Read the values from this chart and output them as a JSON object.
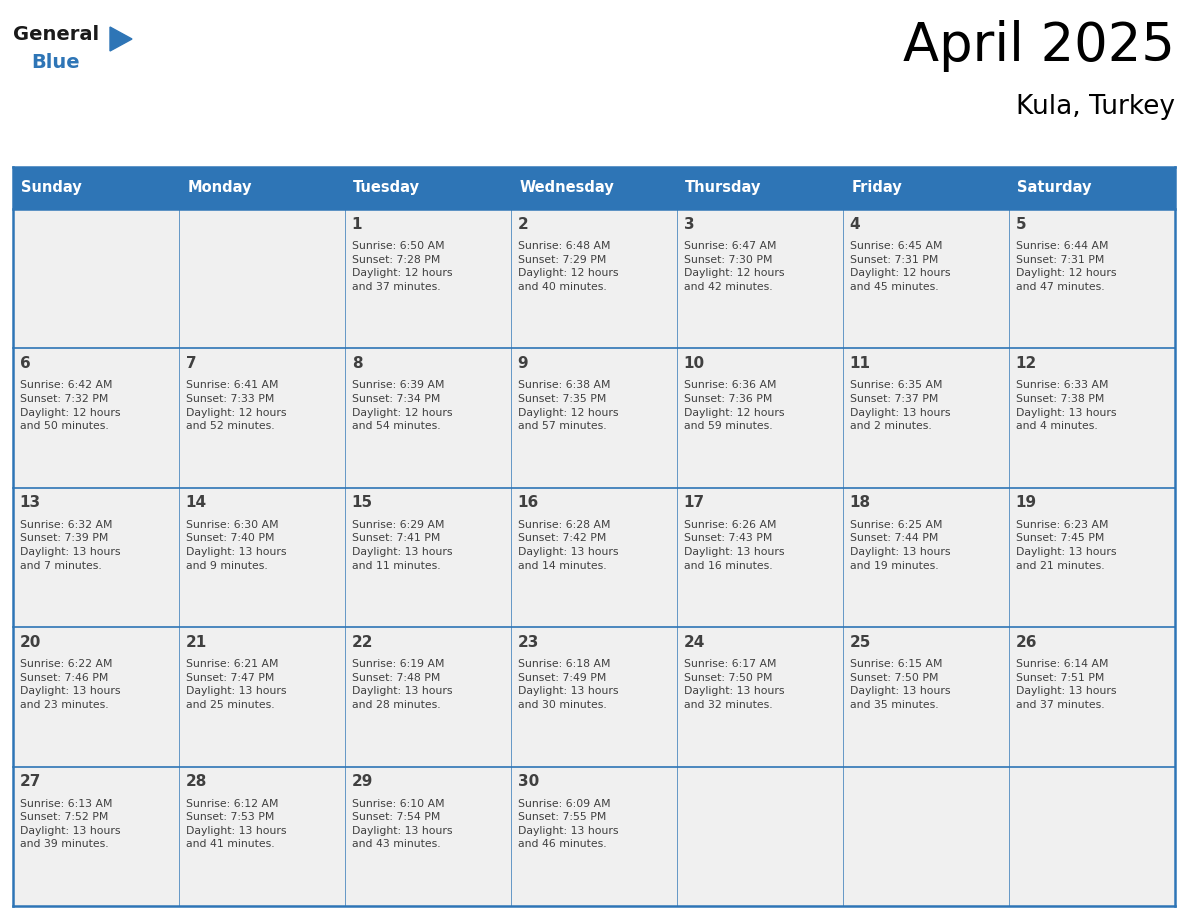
{
  "title": "April 2025",
  "subtitle": "Kula, Turkey",
  "header_bg": "#2E75B6",
  "header_text_color": "#FFFFFF",
  "cell_bg": "#F0F0F0",
  "border_color": "#2E75B6",
  "text_color": "#404040",
  "days_of_week": [
    "Sunday",
    "Monday",
    "Tuesday",
    "Wednesday",
    "Thursday",
    "Friday",
    "Saturday"
  ],
  "logo_general_color": "#1a1a1a",
  "logo_blue_color": "#2E75B6",
  "calendar": [
    [
      {
        "day": "",
        "info": ""
      },
      {
        "day": "",
        "info": ""
      },
      {
        "day": "1",
        "info": "Sunrise: 6:50 AM\nSunset: 7:28 PM\nDaylight: 12 hours\nand 37 minutes."
      },
      {
        "day": "2",
        "info": "Sunrise: 6:48 AM\nSunset: 7:29 PM\nDaylight: 12 hours\nand 40 minutes."
      },
      {
        "day": "3",
        "info": "Sunrise: 6:47 AM\nSunset: 7:30 PM\nDaylight: 12 hours\nand 42 minutes."
      },
      {
        "day": "4",
        "info": "Sunrise: 6:45 AM\nSunset: 7:31 PM\nDaylight: 12 hours\nand 45 minutes."
      },
      {
        "day": "5",
        "info": "Sunrise: 6:44 AM\nSunset: 7:31 PM\nDaylight: 12 hours\nand 47 minutes."
      }
    ],
    [
      {
        "day": "6",
        "info": "Sunrise: 6:42 AM\nSunset: 7:32 PM\nDaylight: 12 hours\nand 50 minutes."
      },
      {
        "day": "7",
        "info": "Sunrise: 6:41 AM\nSunset: 7:33 PM\nDaylight: 12 hours\nand 52 minutes."
      },
      {
        "day": "8",
        "info": "Sunrise: 6:39 AM\nSunset: 7:34 PM\nDaylight: 12 hours\nand 54 minutes."
      },
      {
        "day": "9",
        "info": "Sunrise: 6:38 AM\nSunset: 7:35 PM\nDaylight: 12 hours\nand 57 minutes."
      },
      {
        "day": "10",
        "info": "Sunrise: 6:36 AM\nSunset: 7:36 PM\nDaylight: 12 hours\nand 59 minutes."
      },
      {
        "day": "11",
        "info": "Sunrise: 6:35 AM\nSunset: 7:37 PM\nDaylight: 13 hours\nand 2 minutes."
      },
      {
        "day": "12",
        "info": "Sunrise: 6:33 AM\nSunset: 7:38 PM\nDaylight: 13 hours\nand 4 minutes."
      }
    ],
    [
      {
        "day": "13",
        "info": "Sunrise: 6:32 AM\nSunset: 7:39 PM\nDaylight: 13 hours\nand 7 minutes."
      },
      {
        "day": "14",
        "info": "Sunrise: 6:30 AM\nSunset: 7:40 PM\nDaylight: 13 hours\nand 9 minutes."
      },
      {
        "day": "15",
        "info": "Sunrise: 6:29 AM\nSunset: 7:41 PM\nDaylight: 13 hours\nand 11 minutes."
      },
      {
        "day": "16",
        "info": "Sunrise: 6:28 AM\nSunset: 7:42 PM\nDaylight: 13 hours\nand 14 minutes."
      },
      {
        "day": "17",
        "info": "Sunrise: 6:26 AM\nSunset: 7:43 PM\nDaylight: 13 hours\nand 16 minutes."
      },
      {
        "day": "18",
        "info": "Sunrise: 6:25 AM\nSunset: 7:44 PM\nDaylight: 13 hours\nand 19 minutes."
      },
      {
        "day": "19",
        "info": "Sunrise: 6:23 AM\nSunset: 7:45 PM\nDaylight: 13 hours\nand 21 minutes."
      }
    ],
    [
      {
        "day": "20",
        "info": "Sunrise: 6:22 AM\nSunset: 7:46 PM\nDaylight: 13 hours\nand 23 minutes."
      },
      {
        "day": "21",
        "info": "Sunrise: 6:21 AM\nSunset: 7:47 PM\nDaylight: 13 hours\nand 25 minutes."
      },
      {
        "day": "22",
        "info": "Sunrise: 6:19 AM\nSunset: 7:48 PM\nDaylight: 13 hours\nand 28 minutes."
      },
      {
        "day": "23",
        "info": "Sunrise: 6:18 AM\nSunset: 7:49 PM\nDaylight: 13 hours\nand 30 minutes."
      },
      {
        "day": "24",
        "info": "Sunrise: 6:17 AM\nSunset: 7:50 PM\nDaylight: 13 hours\nand 32 minutes."
      },
      {
        "day": "25",
        "info": "Sunrise: 6:15 AM\nSunset: 7:50 PM\nDaylight: 13 hours\nand 35 minutes."
      },
      {
        "day": "26",
        "info": "Sunrise: 6:14 AM\nSunset: 7:51 PM\nDaylight: 13 hours\nand 37 minutes."
      }
    ],
    [
      {
        "day": "27",
        "info": "Sunrise: 6:13 AM\nSunset: 7:52 PM\nDaylight: 13 hours\nand 39 minutes."
      },
      {
        "day": "28",
        "info": "Sunrise: 6:12 AM\nSunset: 7:53 PM\nDaylight: 13 hours\nand 41 minutes."
      },
      {
        "day": "29",
        "info": "Sunrise: 6:10 AM\nSunset: 7:54 PM\nDaylight: 13 hours\nand 43 minutes."
      },
      {
        "day": "30",
        "info": "Sunrise: 6:09 AM\nSunset: 7:55 PM\nDaylight: 13 hours\nand 46 minutes."
      },
      {
        "day": "",
        "info": ""
      },
      {
        "day": "",
        "info": ""
      },
      {
        "day": "",
        "info": ""
      }
    ]
  ]
}
